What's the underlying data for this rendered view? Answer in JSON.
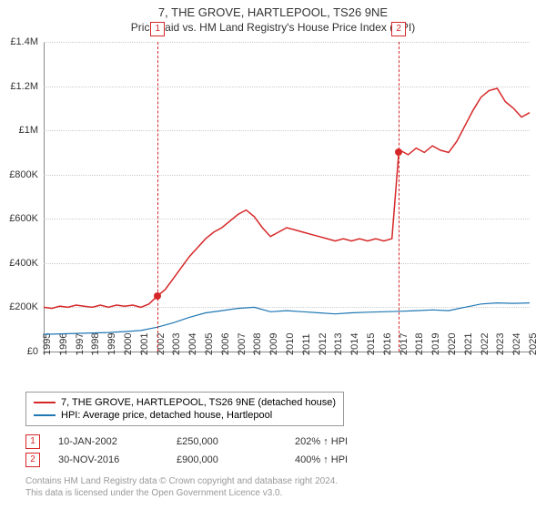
{
  "title": "7, THE GROVE, HARTLEPOOL, TS26 9NE",
  "subtitle": "Price paid vs. HM Land Registry's House Price Index (HPI)",
  "chart": {
    "type": "line",
    "background_color": "#ffffff",
    "grid_color": "#cccccc",
    "axis_color": "#888888",
    "font_size": 11,
    "ylim_min": 0,
    "ylim_max": 1400000,
    "ytick_step": 200000,
    "yticks": [
      "£0",
      "£200K",
      "£400K",
      "£600K",
      "£800K",
      "£1M",
      "£1.2M",
      "£1.4M"
    ],
    "xlim_min": 1995,
    "xlim_max": 2025,
    "xticks": [
      1995,
      1996,
      1997,
      1998,
      1999,
      2000,
      2001,
      2002,
      2003,
      2004,
      2005,
      2006,
      2007,
      2008,
      2009,
      2010,
      2011,
      2012,
      2013,
      2014,
      2015,
      2016,
      2017,
      2018,
      2019,
      2020,
      2021,
      2022,
      2023,
      2024,
      2025
    ],
    "series": [
      {
        "name": "price_paid",
        "label": "7, THE GROVE, HARTLEPOOL, TS26 9NE (detached house)",
        "color": "#d62728",
        "line_width": 1.5,
        "data": [
          [
            1995,
            200000
          ],
          [
            1995.5,
            195000
          ],
          [
            1996,
            205000
          ],
          [
            1996.5,
            200000
          ],
          [
            1997,
            210000
          ],
          [
            1997.5,
            205000
          ],
          [
            1998,
            200000
          ],
          [
            1998.5,
            210000
          ],
          [
            1999,
            200000
          ],
          [
            1999.5,
            210000
          ],
          [
            2000,
            205000
          ],
          [
            2000.5,
            210000
          ],
          [
            2001,
            200000
          ],
          [
            2001.5,
            215000
          ],
          [
            2002,
            250000
          ],
          [
            2002.5,
            280000
          ],
          [
            2003,
            330000
          ],
          [
            2003.5,
            380000
          ],
          [
            2004,
            430000
          ],
          [
            2004.5,
            470000
          ],
          [
            2005,
            510000
          ],
          [
            2005.5,
            540000
          ],
          [
            2006,
            560000
          ],
          [
            2006.5,
            590000
          ],
          [
            2007,
            620000
          ],
          [
            2007.5,
            640000
          ],
          [
            2008,
            610000
          ],
          [
            2008.5,
            560000
          ],
          [
            2009,
            520000
          ],
          [
            2009.5,
            540000
          ],
          [
            2010,
            560000
          ],
          [
            2010.5,
            550000
          ],
          [
            2011,
            540000
          ],
          [
            2011.5,
            530000
          ],
          [
            2012,
            520000
          ],
          [
            2012.5,
            510000
          ],
          [
            2013,
            500000
          ],
          [
            2013.5,
            510000
          ],
          [
            2014,
            500000
          ],
          [
            2014.5,
            510000
          ],
          [
            2015,
            500000
          ],
          [
            2015.5,
            510000
          ],
          [
            2016,
            500000
          ],
          [
            2016.5,
            510000
          ],
          [
            2016.92,
            900000
          ],
          [
            2017,
            910000
          ],
          [
            2017.5,
            890000
          ],
          [
            2018,
            920000
          ],
          [
            2018.5,
            900000
          ],
          [
            2019,
            930000
          ],
          [
            2019.5,
            910000
          ],
          [
            2020,
            900000
          ],
          [
            2020.5,
            950000
          ],
          [
            2021,
            1020000
          ],
          [
            2021.5,
            1090000
          ],
          [
            2022,
            1150000
          ],
          [
            2022.5,
            1180000
          ],
          [
            2023,
            1190000
          ],
          [
            2023.5,
            1130000
          ],
          [
            2024,
            1100000
          ],
          [
            2024.5,
            1060000
          ],
          [
            2025,
            1080000
          ]
        ]
      },
      {
        "name": "hpi",
        "label": "HPI: Average price, detached house, Hartlepool",
        "color": "#1f77b4",
        "line_width": 1.2,
        "data": [
          [
            1995,
            78000
          ],
          [
            1996,
            80000
          ],
          [
            1997,
            82000
          ],
          [
            1998,
            84000
          ],
          [
            1999,
            86000
          ],
          [
            2000,
            90000
          ],
          [
            2001,
            95000
          ],
          [
            2002,
            110000
          ],
          [
            2003,
            130000
          ],
          [
            2004,
            155000
          ],
          [
            2005,
            175000
          ],
          [
            2006,
            185000
          ],
          [
            2007,
            195000
          ],
          [
            2008,
            200000
          ],
          [
            2009,
            180000
          ],
          [
            2010,
            185000
          ],
          [
            2011,
            180000
          ],
          [
            2012,
            175000
          ],
          [
            2013,
            170000
          ],
          [
            2014,
            175000
          ],
          [
            2015,
            178000
          ],
          [
            2016,
            180000
          ],
          [
            2017,
            182000
          ],
          [
            2018,
            185000
          ],
          [
            2019,
            188000
          ],
          [
            2020,
            185000
          ],
          [
            2021,
            200000
          ],
          [
            2022,
            215000
          ],
          [
            2023,
            220000
          ],
          [
            2024,
            218000
          ],
          [
            2025,
            220000
          ]
        ]
      }
    ],
    "markers": [
      {
        "num": "1",
        "x": 2002.04,
        "y": 250000
      },
      {
        "num": "2",
        "x": 2016.92,
        "y": 900000
      }
    ]
  },
  "legend": {
    "items": [
      {
        "color": "#d62728",
        "label": "7, THE GROVE, HARTLEPOOL, TS26 9NE (detached house)"
      },
      {
        "color": "#1f77b4",
        "label": "HPI: Average price, detached house, Hartlepool"
      }
    ]
  },
  "transactions": [
    {
      "num": "1",
      "date": "10-JAN-2002",
      "price": "£250,000",
      "pct": "202% ↑ HPI"
    },
    {
      "num": "2",
      "date": "30-NOV-2016",
      "price": "£900,000",
      "pct": "400% ↑ HPI"
    }
  ],
  "credits_line1": "Contains HM Land Registry data © Crown copyright and database right 2024.",
  "credits_line2": "This data is licensed under the Open Government Licence v3.0."
}
